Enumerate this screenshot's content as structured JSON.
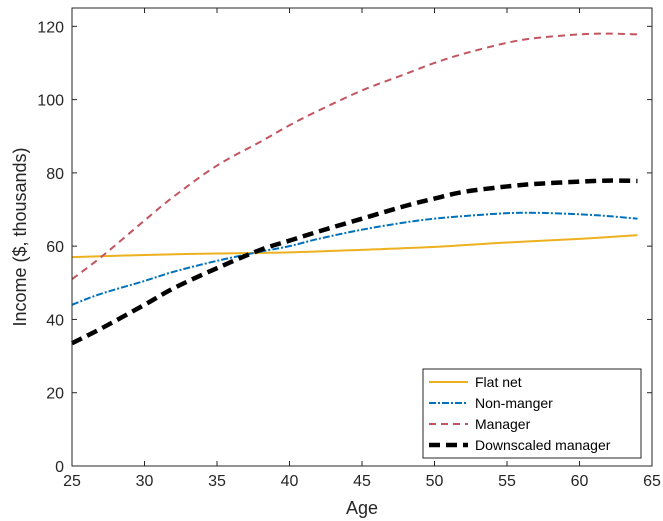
{
  "chart_data": {
    "type": "line",
    "xlabel": "Age",
    "ylabel": "Income ($, thousands)",
    "xlim": [
      25,
      65
    ],
    "ylim": [
      0,
      125
    ],
    "xticks": [
      25,
      30,
      35,
      40,
      45,
      50,
      55,
      60,
      65
    ],
    "yticks": [
      0,
      20,
      40,
      60,
      80,
      100,
      120
    ],
    "grid": false,
    "legend_position": "bottom-right",
    "series": [
      {
        "name": "Flat net",
        "color": "#EDB120",
        "style": "solid",
        "x": [
          25,
          30,
          35,
          40,
          45,
          50,
          55,
          60,
          64
        ],
        "y": [
          57.0,
          57.6,
          58.0,
          58.3,
          59.0,
          59.8,
          61.0,
          62.0,
          63.0
        ]
      },
      {
        "name": "Non-manger",
        "color": "#0072BD",
        "style": "dashdot",
        "x": [
          25,
          27,
          30,
          32,
          35,
          38,
          40,
          42,
          45,
          48,
          50,
          52,
          55,
          57,
          60,
          62,
          64
        ],
        "y": [
          44.0,
          47.0,
          50.5,
          53.0,
          56.0,
          58.5,
          60.0,
          62.0,
          64.5,
          66.5,
          67.5,
          68.2,
          69.0,
          69.1,
          68.7,
          68.2,
          67.5
        ]
      },
      {
        "name": "Manager",
        "color": "#C25560",
        "style": "dashed",
        "x": [
          25,
          27,
          30,
          32,
          35,
          38,
          40,
          42,
          45,
          48,
          50,
          52,
          55,
          57,
          60,
          62,
          64
        ],
        "y": [
          51.0,
          57.0,
          67.0,
          73.5,
          82.0,
          88.5,
          93.0,
          97.0,
          102.5,
          107.0,
          110.0,
          112.5,
          115.5,
          116.8,
          117.8,
          118.0,
          117.8
        ]
      },
      {
        "name": "Downscaled manager",
        "color": "#000000",
        "style": "thickdash",
        "x": [
          25,
          27,
          30,
          32,
          35,
          38,
          40,
          42,
          45,
          48,
          50,
          52,
          55,
          57,
          60,
          62,
          64
        ],
        "y": [
          33.5,
          37.5,
          44.0,
          48.5,
          54.0,
          59.0,
          61.5,
          64.0,
          67.5,
          71.0,
          73.0,
          74.8,
          76.3,
          77.0,
          77.6,
          77.9,
          77.8
        ]
      }
    ]
  }
}
